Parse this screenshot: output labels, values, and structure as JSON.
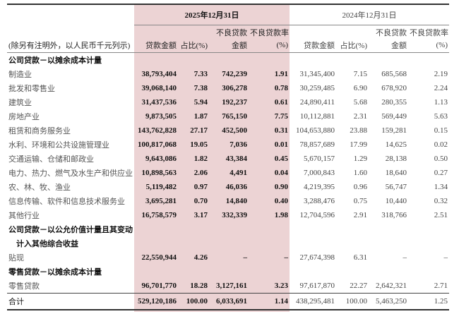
{
  "header": {
    "period_2025": "2025年12月31日",
    "period_2024": "2024年12月31日",
    "note": "(除另有注明外，以人民币千元列示)",
    "col_loan": "贷款金额",
    "col_share": "占比(%)",
    "col_npl_top": "不良贷款",
    "col_npl_bottom": "金额",
    "col_rate_top": "不良贷款率",
    "col_rate_bottom": "(%)"
  },
  "rows": [
    {
      "label": "公司贷款－以摊余成本计量",
      "section": true
    },
    {
      "label": "制造业",
      "v": [
        "38,793,404",
        "7.33",
        "742,239",
        "1.91",
        "31,345,400",
        "7.15",
        "685,568",
        "2.19"
      ]
    },
    {
      "label": "批发和零售业",
      "v": [
        "39,068,140",
        "7.38",
        "306,278",
        "0.78",
        "30,259,485",
        "6.90",
        "678,920",
        "2.24"
      ]
    },
    {
      "label": "建筑业",
      "v": [
        "31,437,536",
        "5.94",
        "192,237",
        "0.61",
        "24,890,411",
        "5.68",
        "280,355",
        "1.13"
      ]
    },
    {
      "label": "房地产业",
      "v": [
        "9,873,505",
        "1.87",
        "765,150",
        "7.75",
        "10,112,881",
        "2.31",
        "569,449",
        "5.63"
      ]
    },
    {
      "label": "租赁和商务服务业",
      "v": [
        "143,762,828",
        "27.17",
        "452,500",
        "0.31",
        "104,653,880",
        "23.88",
        "159,281",
        "0.15"
      ]
    },
    {
      "label": "水利、环境和公共设施管理业",
      "v": [
        "100,817,068",
        "19.05",
        "7,036",
        "0.01",
        "78,857,689",
        "17.99",
        "14,625",
        "0.02"
      ]
    },
    {
      "label": "交通运输、仓储和邮政业",
      "v": [
        "9,643,086",
        "1.82",
        "43,384",
        "0.45",
        "5,670,157",
        "1.29",
        "28,138",
        "0.50"
      ]
    },
    {
      "label": "电力、热力、燃气及水生产和供应业",
      "v": [
        "10,898,563",
        "2.06",
        "4,491",
        "0.04",
        "7,000,843",
        "1.60",
        "18,640",
        "0.27"
      ]
    },
    {
      "label": "农、林、牧、渔业",
      "v": [
        "5,119,482",
        "0.97",
        "46,036",
        "0.90",
        "4,219,395",
        "0.96",
        "56,747",
        "1.34"
      ]
    },
    {
      "label": "信息传输、软件和信息技术服务业",
      "v": [
        "3,695,281",
        "0.70",
        "14,840",
        "0.40",
        "3,288,476",
        "0.75",
        "10,440",
        "0.32"
      ]
    },
    {
      "label": "其他行业",
      "v": [
        "16,758,579",
        "3.17",
        "332,339",
        "1.98",
        "12,704,596",
        "2.91",
        "318,766",
        "2.51"
      ]
    },
    {
      "label": "公司贷款－以公允价值计量且其变动",
      "section": true
    },
    {
      "label": "　计入其他综合收益",
      "section": true
    },
    {
      "label": "贴现",
      "v": [
        "22,550,944",
        "4.26",
        "–",
        "–",
        "27,674,398",
        "6.31",
        "–",
        "–"
      ]
    },
    {
      "label": "零售贷款－以摊余成本计量",
      "section": true
    },
    {
      "label": "零售贷款",
      "v": [
        "96,701,770",
        "18.28",
        "3,127,161",
        "3.23",
        "97,617,870",
        "22.27",
        "2,642,321",
        "2.71"
      ]
    }
  ],
  "total": {
    "label": "合计",
    "v": [
      "529,120,186",
      "100.00",
      "6,033,691",
      "1.14",
      "438,295,481",
      "100.00",
      "5,463,250",
      "1.25"
    ]
  }
}
